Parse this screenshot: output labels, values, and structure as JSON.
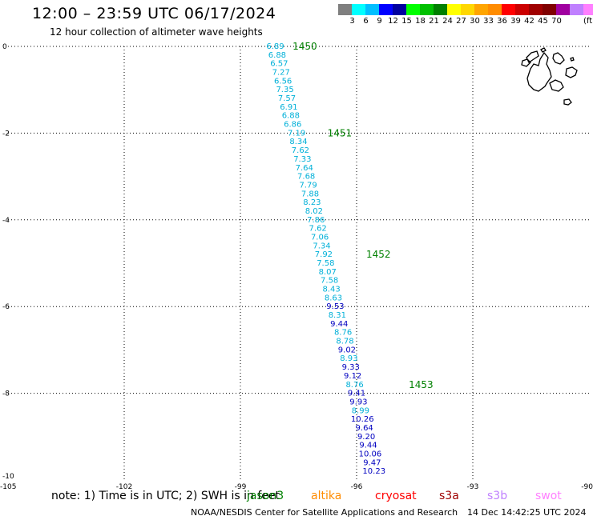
{
  "header": {
    "title": "12:00 – 23:59 UTC 06/17/2024",
    "subtitle": "12 hour collection of altimeter wave heights"
  },
  "color_scale": {
    "colors": [
      "#7f7f7f",
      "#00ffff",
      "#00bfff",
      "#0000ff",
      "#0000a0",
      "#00ff00",
      "#00c000",
      "#008000",
      "#ffff00",
      "#ffd700",
      "#ffa500",
      "#ff8c00",
      "#ff0000",
      "#cc0000",
      "#a00000",
      "#800000",
      "#a000a0",
      "#c080ff",
      "#ff80ff",
      "#000000"
    ],
    "labels": [
      "3",
      "6",
      "9",
      "12",
      "15",
      "18",
      "21",
      "24",
      "27",
      "30",
      "33",
      "36",
      "39",
      "42",
      "45",
      "70"
    ],
    "unit": "(ft)"
  },
  "map": {
    "lat_ticks": [
      "0",
      "-2",
      "-4",
      "-6",
      "-8",
      "-10"
    ],
    "lon_ticks": [
      "-105",
      "-102",
      "-99",
      "-96",
      "-93",
      "-90"
    ],
    "pass_colors": {
      "light": "#00b0d8",
      "dark": "#0000c0",
      "pass_label": "#008000"
    },
    "passes": [
      {
        "label": "1450",
        "lon": -97.9,
        "lat": 0.0
      },
      {
        "label": "1451",
        "lon": -97.0,
        "lat": -2.0
      },
      {
        "label": "1452",
        "lon": -96.0,
        "lat": -4.8
      },
      {
        "label": "1453",
        "lon": -94.9,
        "lat": -7.8
      }
    ],
    "points": [
      {
        "v": "6.89",
        "lon": -98.1,
        "lat": 0.0,
        "c": "light"
      },
      {
        "v": "6.88",
        "lon": -98.05,
        "lat": -0.2,
        "c": "light"
      },
      {
        "v": "6.57",
        "lon": -98.0,
        "lat": -0.4,
        "c": "light"
      },
      {
        "v": "7.27",
        "lon": -97.95,
        "lat": -0.6,
        "c": "light"
      },
      {
        "v": "6.56",
        "lon": -97.9,
        "lat": -0.8,
        "c": "light"
      },
      {
        "v": "7.35",
        "lon": -97.85,
        "lat": -1.0,
        "c": "light"
      },
      {
        "v": "7.57",
        "lon": -97.8,
        "lat": -1.2,
        "c": "light"
      },
      {
        "v": "6.91",
        "lon": -97.75,
        "lat": -1.4,
        "c": "light"
      },
      {
        "v": "6.88",
        "lon": -97.7,
        "lat": -1.6,
        "c": "light"
      },
      {
        "v": "6.86",
        "lon": -97.65,
        "lat": -1.8,
        "c": "light"
      },
      {
        "v": "7.19",
        "lon": -97.55,
        "lat": -2.0,
        "c": "light"
      },
      {
        "v": "8.34",
        "lon": -97.5,
        "lat": -2.2,
        "c": "light"
      },
      {
        "v": "7.62",
        "lon": -97.45,
        "lat": -2.4,
        "c": "light"
      },
      {
        "v": "7.33",
        "lon": -97.4,
        "lat": -2.6,
        "c": "light"
      },
      {
        "v": "7.64",
        "lon": -97.35,
        "lat": -2.8,
        "c": "light"
      },
      {
        "v": "7.68",
        "lon": -97.3,
        "lat": -3.0,
        "c": "light"
      },
      {
        "v": "7.79",
        "lon": -97.25,
        "lat": -3.2,
        "c": "light"
      },
      {
        "v": "7.88",
        "lon": -97.2,
        "lat": -3.4,
        "c": "light"
      },
      {
        "v": "8.23",
        "lon": -97.15,
        "lat": -3.6,
        "c": "light"
      },
      {
        "v": "8.02",
        "lon": -97.1,
        "lat": -3.8,
        "c": "light"
      },
      {
        "v": "7.86",
        "lon": -97.05,
        "lat": -4.0,
        "c": "light"
      },
      {
        "v": "7.62",
        "lon": -97.0,
        "lat": -4.2,
        "c": "light"
      },
      {
        "v": "7.06",
        "lon": -96.95,
        "lat": -4.4,
        "c": "light"
      },
      {
        "v": "7.34",
        "lon": -96.9,
        "lat": -4.6,
        "c": "light"
      },
      {
        "v": "7.92",
        "lon": -96.85,
        "lat": -4.8,
        "c": "light"
      },
      {
        "v": "7.58",
        "lon": -96.8,
        "lat": -5.0,
        "c": "light"
      },
      {
        "v": "8.07",
        "lon": -96.75,
        "lat": -5.2,
        "c": "light"
      },
      {
        "v": "7.58",
        "lon": -96.7,
        "lat": -5.4,
        "c": "light"
      },
      {
        "v": "8.43",
        "lon": -96.65,
        "lat": -5.6,
        "c": "light"
      },
      {
        "v": "8.63",
        "lon": -96.6,
        "lat": -5.8,
        "c": "light"
      },
      {
        "v": "9.53",
        "lon": -96.55,
        "lat": -6.0,
        "c": "dark"
      },
      {
        "v": "8.31",
        "lon": -96.5,
        "lat": -6.2,
        "c": "light"
      },
      {
        "v": "9.44",
        "lon": -96.45,
        "lat": -6.4,
        "c": "dark"
      },
      {
        "v": "8.76",
        "lon": -96.35,
        "lat": -6.6,
        "c": "light"
      },
      {
        "v": "8.78",
        "lon": -96.3,
        "lat": -6.8,
        "c": "light"
      },
      {
        "v": "9.02",
        "lon": -96.25,
        "lat": -7.0,
        "c": "dark"
      },
      {
        "v": "8.93",
        "lon": -96.2,
        "lat": -7.2,
        "c": "light"
      },
      {
        "v": "9.33",
        "lon": -96.15,
        "lat": -7.4,
        "c": "dark"
      },
      {
        "v": "9.12",
        "lon": -96.1,
        "lat": -7.6,
        "c": "dark"
      },
      {
        "v": "8.76",
        "lon": -96.05,
        "lat": -7.8,
        "c": "light"
      },
      {
        "v": "9.41",
        "lon": -96.0,
        "lat": -8.0,
        "c": "dark"
      },
      {
        "v": "9.93",
        "lon": -95.95,
        "lat": -8.2,
        "c": "dark"
      },
      {
        "v": "8.99",
        "lon": -95.9,
        "lat": -8.4,
        "c": "light"
      },
      {
        "v": "10.26",
        "lon": -95.85,
        "lat": -8.6,
        "c": "dark"
      },
      {
        "v": "9.64",
        "lon": -95.8,
        "lat": -8.8,
        "c": "dark"
      },
      {
        "v": "9.20",
        "lon": -95.75,
        "lat": -9.0,
        "c": "dark"
      },
      {
        "v": "9.44",
        "lon": -95.7,
        "lat": -9.2,
        "c": "dark"
      },
      {
        "v": "10.06",
        "lon": -95.65,
        "lat": -9.4,
        "c": "dark"
      },
      {
        "v": "9.47",
        "lon": -95.6,
        "lat": -9.6,
        "c": "dark"
      },
      {
        "v": "10.23",
        "lon": -95.55,
        "lat": -9.8,
        "c": "dark"
      }
    ]
  },
  "note": "note:  1) Time is in UTC; 2) SWH is in feet",
  "legend": [
    {
      "name": "jason3",
      "color": "#008000"
    },
    {
      "name": "altika",
      "color": "#ff8c00"
    },
    {
      "name": "cryosat",
      "color": "#ff0000"
    },
    {
      "name": "s3a",
      "color": "#a00000"
    },
    {
      "name": "s3b",
      "color": "#c080ff"
    },
    {
      "name": "swot",
      "color": "#ff80ff"
    }
  ],
  "footer": {
    "credit": "NOAA/NESDIS Center for Satellite Applications and Research",
    "timestamp": "14 Dec 14:42:25 UTC 2024"
  }
}
